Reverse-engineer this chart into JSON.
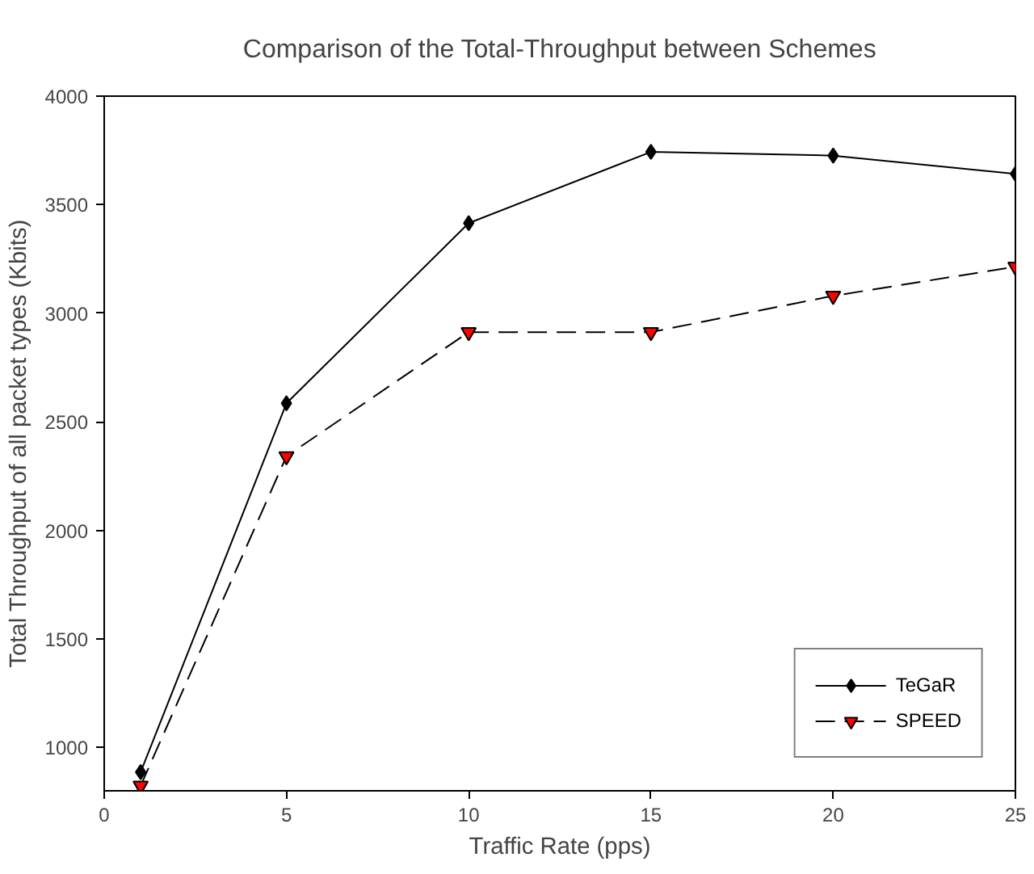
{
  "chart_data": {
    "type": "line",
    "title": "Comparison of the Total-Throughput between Schemes",
    "xlabel": "Traffic Rate (pps)",
    "ylabel": "Total Throughput of all packet types (Kbits)",
    "x": [
      1,
      5,
      10,
      15,
      20,
      25
    ],
    "series": [
      {
        "name": "TeGaR",
        "color": "#000000",
        "values": [
          886,
          2585,
          3415,
          3743,
          3726,
          3642
        ],
        "marker": "diamond",
        "line_style": "solid"
      },
      {
        "name": "SPEED",
        "color": "#ff0000",
        "values": [
          823,
          2341,
          2913,
          2913,
          3080,
          3214
        ],
        "marker": "triangle",
        "line_style": "dashed"
      }
    ],
    "xlim": [
      0,
      25
    ],
    "xticks": [
      0,
      5,
      10,
      15,
      20,
      25
    ],
    "ylim": [
      800,
      4000
    ],
    "yticks": [
      1000,
      1500,
      2000,
      2500,
      3000,
      3500,
      4000
    ],
    "grid": false,
    "legend": "bottom right"
  }
}
